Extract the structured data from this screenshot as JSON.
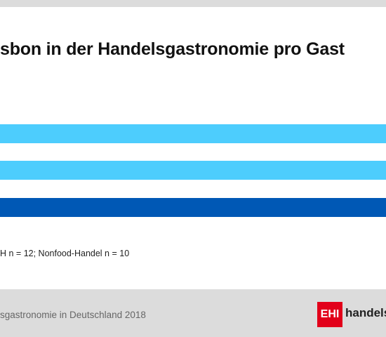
{
  "header": {
    "title": "sbon in der Handelsgastronomie pro Gast"
  },
  "note": "H n = 12; Nonfood-Handel n = 10",
  "footer": {
    "source": "sgastronomie in Deutschland 2018",
    "logo_mark": "EHI",
    "logo_text": "handelsd"
  }
}
